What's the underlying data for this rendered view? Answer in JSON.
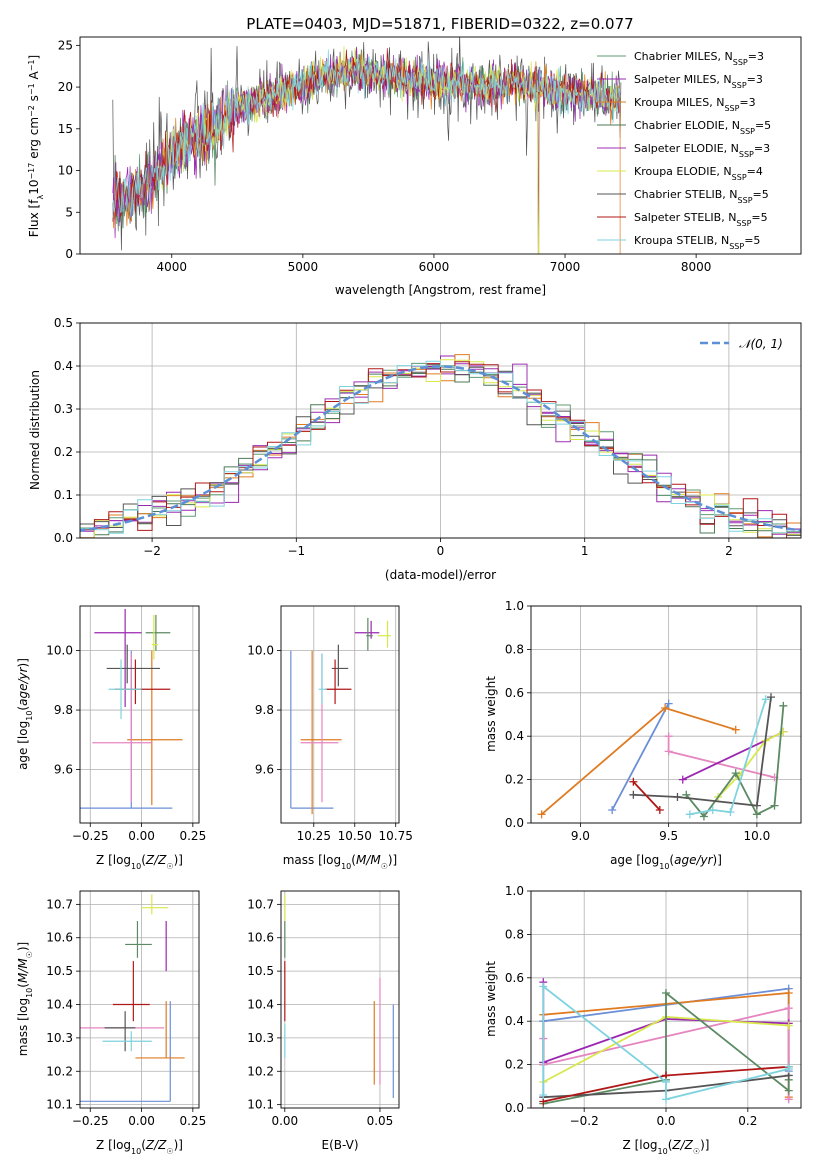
{
  "figure": {
    "title": "PLATE=0403, MJD=51871, FIBERID=0322, z=0.077"
  },
  "colors": {
    "series": [
      "#5f9b73",
      "#9b27b0",
      "#e07b22",
      "#4c7a56",
      "#9e32b3",
      "#d8e84c",
      "#555555",
      "#b01818",
      "#7fd3df"
    ],
    "mass_lines": [
      "#6b8fd6",
      "#e07b22",
      "#e685c0",
      "#9b27b0",
      "#d8e84c",
      "#5b8a63",
      "#555555",
      "#b01818",
      "#7fd3df"
    ],
    "normal_dash": "#5b8fd6"
  },
  "legend": {
    "spectrum": [
      {
        "label": "Chabrier MILES, N",
        "sub": "SSP",
        "tail": "=3"
      },
      {
        "label": "Salpeter MILES, N",
        "sub": "SSP",
        "tail": "=3"
      },
      {
        "label": "Kroupa MILES, N",
        "sub": "SSP",
        "tail": "=3"
      },
      {
        "label": "Chabrier ELODIE, N",
        "sub": "SSP",
        "tail": "=5"
      },
      {
        "label": "Salpeter ELODIE, N",
        "sub": "SSP",
        "tail": "=3"
      },
      {
        "label": "Kroupa ELODIE, N",
        "sub": "SSP",
        "tail": "=4"
      },
      {
        "label": "Chabrier STELIB, N",
        "sub": "SSP",
        "tail": "=5"
      },
      {
        "label": "Salpeter STELIB, N",
        "sub": "SSP",
        "tail": "=5"
      },
      {
        "label": "Kroupa STELIB, N",
        "sub": "SSP",
        "tail": "=5"
      }
    ],
    "residual": "𝒩(0, 1)"
  },
  "chart_data": [
    {
      "id": "spectrum",
      "type": "line",
      "xlabel": "wavelength [Angstrom, rest frame]",
      "ylabel": "Flux [f",
      "ylabel_parts": [
        "Flux [f",
        "λ",
        "10",
        "−17",
        " erg cm",
        "−2",
        " s",
        "−1",
        " A",
        "−1",
        "]"
      ],
      "xlim": [
        3300,
        8800
      ],
      "ylim": [
        0,
        26
      ],
      "xticks": [
        4000,
        5000,
        6000,
        7000,
        8000
      ],
      "yticks": [
        0,
        5,
        10,
        15,
        20,
        25
      ],
      "grid": false,
      "legend_position": "top-right",
      "continuum": [
        [
          3550,
          6.5
        ],
        [
          3700,
          7.0
        ],
        [
          3850,
          8.5
        ],
        [
          3950,
          11.0
        ],
        [
          4100,
          13.5
        ],
        [
          4300,
          14.5
        ],
        [
          4450,
          17.0
        ],
        [
          4600,
          18.0
        ],
        [
          4800,
          19.0
        ],
        [
          5000,
          20.0
        ],
        [
          5200,
          21.5
        ],
        [
          5400,
          22.0
        ],
        [
          5600,
          21.5
        ],
        [
          5800,
          21.0
        ],
        [
          6000,
          20.5
        ],
        [
          6200,
          20.5
        ],
        [
          6400,
          20.0
        ],
        [
          6600,
          20.5
        ],
        [
          6800,
          20.0
        ],
        [
          7000,
          19.5
        ],
        [
          7200,
          19.0
        ],
        [
          7400,
          18.5
        ],
        [
          7800,
          19.0
        ],
        [
          8200,
          19.5
        ],
        [
          8600,
          19.5
        ]
      ]
    },
    {
      "id": "residuals",
      "type": "line",
      "xlabel": "(data-model)/error",
      "ylabel": "Normed distribution",
      "xlim": [
        -2.5,
        2.5
      ],
      "ylim": [
        0,
        0.5
      ],
      "xticks": [
        -2,
        -1,
        0,
        1,
        2
      ],
      "xticklabels": [
        "−2",
        "−1",
        "0",
        "1",
        "2"
      ],
      "yticks": [
        0.0,
        0.1,
        0.2,
        0.3,
        0.4,
        0.5
      ],
      "yticklabels": [
        "0.0",
        "0.1",
        "0.2",
        "0.3",
        "0.4",
        "0.5"
      ],
      "grid": true,
      "legend_position": "top-right",
      "series": [
        {
          "name": "𝒩(0, 1)",
          "mu": 0,
          "sigma": 1
        }
      ]
    },
    {
      "id": "age_vs_Z",
      "type": "scatter",
      "xlabel": "Z [log10(Z/Z☉)]",
      "xlabel_parts": [
        "Z [log",
        "10",
        "(Z/Z",
        "☉",
        ")]"
      ],
      "ylabel_parts": [
        "age  [log",
        "10",
        "(age/yr)]"
      ],
      "xlim": [
        -0.3,
        0.28
      ],
      "ylim": [
        9.42,
        10.15
      ],
      "xticks": [
        -0.25,
        0.0,
        0.25
      ],
      "xticklabels": [
        "−0.25",
        "0.00",
        "0.25"
      ],
      "yticks": [
        9.6,
        9.8,
        10.0
      ],
      "yticklabels": [
        "9.6",
        "9.8",
        "10.0"
      ],
      "grid": true,
      "points": [
        {
          "z": -0.05,
          "zerr": [
            0.26,
            0.2
          ],
          "age": 9.47,
          "ageerr": [
            0,
            0.53
          ],
          "ci": 0
        },
        {
          "z": 0.05,
          "zerr": [
            0.12,
            0.15
          ],
          "age": 9.7,
          "ageerr": [
            0.22,
            0.3
          ],
          "ci": 1
        },
        {
          "z": -0.05,
          "zerr": [
            0.19,
            0.1
          ],
          "age": 9.69,
          "ageerr": [
            0.2,
            0.3
          ],
          "ci": 2
        },
        {
          "z": -0.08,
          "zerr": [
            0.15,
            0.08
          ],
          "age": 10.06,
          "ageerr": [
            0.25,
            0.08
          ],
          "ci": 3
        },
        {
          "z": -0.07,
          "zerr": [
            0.1,
            0.16
          ],
          "age": 9.94,
          "ageerr": [
            0.05,
            0.08
          ],
          "ci": 6
        },
        {
          "z": -0.03,
          "zerr": [
            0.1,
            0.17
          ],
          "age": 9.87,
          "ageerr": [
            0.05,
            0.1
          ],
          "ci": 7
        },
        {
          "z": -0.1,
          "zerr": [
            0.06,
            0.1
          ],
          "age": 9.87,
          "ageerr": [
            0.1,
            0.1
          ],
          "ci": 8
        },
        {
          "z": 0.07,
          "zerr": [
            0.05,
            0.07
          ],
          "age": 10.06,
          "ageerr": [
            0.06,
            0.06
          ],
          "ci": 5
        },
        {
          "z": 0.06,
          "zerr": [
            0.01,
            0.02
          ],
          "age": 10.02,
          "ageerr": [
            0.05,
            0.1
          ],
          "ci": 4
        }
      ]
    },
    {
      "id": "age_vs_mass",
      "type": "scatter",
      "xlabel_parts": [
        "mass [log",
        "10",
        "(M/M",
        "☉",
        ")]"
      ],
      "xlim": [
        10.05,
        10.77
      ],
      "ylim": [
        9.42,
        10.15
      ],
      "xticks": [
        10.0,
        10.25,
        10.5,
        10.75
      ],
      "xticklabels": [
        "10.00",
        "10.25",
        "10.50",
        "10.75"
      ],
      "yticks": [
        9.6,
        9.8,
        10.0
      ],
      "yticklabels": [
        "9.6",
        "9.8",
        "10.0"
      ],
      "grid": true,
      "points": [
        {
          "m": 10.11,
          "merr": [
            0,
            0.26
          ],
          "age": 9.47,
          "ageerr": [
            0,
            0.53
          ],
          "ci": 0
        },
        {
          "m": 10.24,
          "merr": [
            0.07,
            0.18
          ],
          "age": 9.7,
          "ageerr": [
            0.25,
            0.3
          ],
          "ci": 1
        },
        {
          "m": 10.3,
          "merr": [
            0.13,
            0.1
          ],
          "age": 9.69,
          "ageerr": [
            0.2,
            0.3
          ],
          "ci": 2
        },
        {
          "m": 10.4,
          "merr": [
            0.04,
            0.06
          ],
          "age": 9.94,
          "ageerr": [
            0.06,
            0.08
          ],
          "ci": 6
        },
        {
          "m": 10.38,
          "merr": [
            0.06,
            0.1
          ],
          "age": 9.87,
          "ageerr": [
            0.05,
            0.1
          ],
          "ci": 7
        },
        {
          "m": 10.3,
          "merr": [
            0.02,
            0.03
          ],
          "age": 9.87,
          "ageerr": [
            0.05,
            0.12
          ],
          "ci": 8
        },
        {
          "m": 10.6,
          "merr": [
            0.1,
            0.05
          ],
          "age": 10.06,
          "ageerr": [
            0.02,
            0.04
          ],
          "ci": 3
        },
        {
          "m": 10.58,
          "merr": [
            0.01,
            0.03
          ],
          "age": 10.05,
          "ageerr": [
            0.05,
            0.06
          ],
          "ci": 5
        },
        {
          "m": 10.7,
          "merr": [
            0.06,
            0.02
          ],
          "age": 10.05,
          "ageerr": [
            0.04,
            0.05
          ],
          "ci": 4
        }
      ]
    },
    {
      "id": "massweight_vs_age",
      "type": "line",
      "xlabel_parts": [
        "age  [log",
        "10",
        "(age/yr)]"
      ],
      "ylabel": "mass weight",
      "xlim": [
        8.72,
        10.25
      ],
      "ylim": [
        0,
        1
      ],
      "xticks": [
        9.0,
        9.5,
        10.0
      ],
      "xticklabels": [
        "9.0",
        "9.5",
        "10.0"
      ],
      "yticks": [
        0.0,
        0.2,
        0.4,
        0.6,
        0.8,
        1.0
      ],
      "yticklabels": [
        "0.0",
        "0.2",
        "0.4",
        "0.6",
        "0.8",
        "1.0"
      ],
      "grid": true,
      "series": [
        {
          "ci": 0,
          "x": [
            9.18,
            9.5
          ],
          "y": [
            0.06,
            0.55
          ]
        },
        {
          "ci": 1,
          "x": [
            8.78,
            9.48,
            9.88
          ],
          "y": [
            0.04,
            0.53,
            0.43
          ]
        },
        {
          "ci": 2,
          "x": [
            9.5,
            9.5,
            10.1
          ],
          "y": [
            0.4,
            0.33,
            0.21
          ]
        },
        {
          "ci": 3,
          "x": [
            9.58,
            10.15
          ],
          "y": [
            0.2,
            0.42
          ]
        },
        {
          "ci": 4,
          "x": [
            9.78,
            9.9,
            10.05,
            10.15
          ],
          "y": [
            0.12,
            0.22,
            0.38,
            0.42
          ]
        },
        {
          "ci": 5,
          "x": [
            9.6,
            9.7,
            9.88,
            10.0,
            10.1,
            10.15
          ],
          "y": [
            0.13,
            0.03,
            0.23,
            0.04,
            0.08,
            0.54
          ]
        },
        {
          "ci": 6,
          "x": [
            9.3,
            9.55,
            10.0,
            10.08
          ],
          "y": [
            0.13,
            0.12,
            0.08,
            0.58
          ]
        },
        {
          "ci": 7,
          "x": [
            9.3,
            9.45
          ],
          "y": [
            0.19,
            0.06
          ]
        },
        {
          "ci": 8,
          "x": [
            9.62,
            9.75,
            9.85,
            10.05
          ],
          "y": [
            0.04,
            0.06,
            0.05,
            0.57
          ]
        }
      ]
    },
    {
      "id": "mass_vs_Z",
      "type": "scatter",
      "xlabel_parts": [
        "Z [log",
        "10",
        "(Z/Z",
        "☉",
        ")]"
      ],
      "ylabel_parts": [
        "mass [log",
        "10",
        "(M/M",
        "☉",
        ")]"
      ],
      "xlim": [
        -0.3,
        0.28
      ],
      "ylim": [
        10.09,
        10.74
      ],
      "xticks": [
        -0.25,
        0.0,
        0.25
      ],
      "xticklabels": [
        "−0.25",
        "0.00",
        "0.25"
      ],
      "yticks": [
        10.1,
        10.2,
        10.3,
        10.4,
        10.5,
        10.6,
        10.7
      ],
      "yticklabels": [
        "10.1",
        "10.2",
        "10.3",
        "10.4",
        "10.5",
        "10.6",
        "10.7"
      ],
      "grid": true,
      "points": [
        {
          "z": 0.14,
          "zerr": [
            0.44,
            0.0
          ],
          "m": 10.11,
          "merr": [
            0.0,
            0.3
          ],
          "ci": 0
        },
        {
          "z": 0.12,
          "zerr": [
            0.15,
            0.09
          ],
          "m": 10.24,
          "merr": [
            0.0,
            0.17
          ],
          "ci": 1
        },
        {
          "z": -0.05,
          "zerr": [
            0.25,
            0.16
          ],
          "m": 10.33,
          "merr": [
            0.0,
            0.0
          ],
          "ci": 2
        },
        {
          "z": 0.05,
          "zerr": [
            0.05,
            0.08
          ],
          "m": 10.69,
          "merr": [
            0.02,
            0.04
          ],
          "ci": 4
        },
        {
          "z": -0.02,
          "zerr": [
            0.06,
            0.07
          ],
          "m": 10.58,
          "merr": [
            0.04,
            0.07
          ],
          "ci": 5
        },
        {
          "z": -0.04,
          "zerr": [
            0.1,
            0.08
          ],
          "m": 10.4,
          "merr": [
            0.05,
            0.13
          ],
          "ci": 7
        },
        {
          "z": -0.08,
          "zerr": [
            0.1,
            0.05
          ],
          "m": 10.33,
          "merr": [
            0.07,
            0.05
          ],
          "ci": 6
        },
        {
          "z": -0.05,
          "zerr": [
            0.14,
            0.1
          ],
          "m": 10.29,
          "merr": [
            0.03,
            0.03
          ],
          "ci": 8
        },
        {
          "z": 0.12,
          "zerr": [
            0.0,
            0.0
          ],
          "m": 10.55,
          "merr": [
            0.05,
            0.1
          ],
          "ci": 3
        }
      ]
    },
    {
      "id": "mass_vs_ebv",
      "type": "scatter",
      "xlabel": "E(B-V)",
      "xlim": [
        -0.002,
        0.06
      ],
      "ylim": [
        10.09,
        10.74
      ],
      "xticks": [
        0.0,
        0.05
      ],
      "xticklabels": [
        "0.00",
        "0.05"
      ],
      "yticks": [
        10.1,
        10.2,
        10.3,
        10.4,
        10.5,
        10.6,
        10.7
      ],
      "yticklabels": [
        "10.1",
        "10.2",
        "10.3",
        "10.4",
        "10.5",
        "10.6",
        "10.7"
      ],
      "grid": true,
      "points": [
        {
          "e": 0.0,
          "m": 10.69,
          "merr": [
            0.04,
            0.04
          ],
          "ci": 4
        },
        {
          "e": 0.0,
          "m": 10.58,
          "merr": [
            0.04,
            0.07
          ],
          "ci": 5
        },
        {
          "e": 0.0,
          "m": 10.4,
          "merr": [
            0.05,
            0.13
          ],
          "ci": 7
        },
        {
          "e": 0.0,
          "m": 10.29,
          "merr": [
            0.05,
            0.05
          ],
          "ci": 8
        },
        {
          "e": 0.047,
          "m": 10.29,
          "merr": [
            0.13,
            0.12
          ],
          "ci": 1
        },
        {
          "e": 0.05,
          "m": 10.31,
          "merr": [
            0.15,
            0.17
          ],
          "ci": 2
        },
        {
          "e": 0.057,
          "m": 10.26,
          "merr": [
            0.14,
            0.14
          ],
          "ci": 0
        }
      ]
    },
    {
      "id": "massweight_vs_Z",
      "type": "line",
      "xlabel_parts": [
        "Z [log",
        "10",
        "(Z/Z",
        "☉",
        ")]"
      ],
      "ylabel": "mass weight",
      "xlim": [
        -0.33,
        0.33
      ],
      "ylim": [
        0,
        1
      ],
      "xticks": [
        -0.2,
        0.0,
        0.2
      ],
      "xticklabels": [
        "−0.2",
        "0.0",
        "0.2"
      ],
      "yticks": [
        0.0,
        0.2,
        0.4,
        0.6,
        0.8,
        1.0
      ],
      "yticklabels": [
        "0.0",
        "0.2",
        "0.4",
        "0.6",
        "0.8",
        "1.0"
      ],
      "grid": true,
      "series": [
        {
          "ci": 0,
          "x": [
            -0.3,
            -0.3,
            0.3,
            0.3
          ],
          "y": [
            0.05,
            0.4,
            0.55,
            0.17
          ]
        },
        {
          "ci": 1,
          "x": [
            -0.3,
            -0.3,
            0.3,
            0.3
          ],
          "y": [
            0.2,
            0.43,
            0.53,
            0.05
          ]
        },
        {
          "ci": 2,
          "x": [
            -0.3,
            -0.3,
            0.3,
            0.3
          ],
          "y": [
            0.32,
            0.2,
            0.46,
            0.04
          ]
        },
        {
          "ci": 3,
          "x": [
            -0.3,
            -0.3,
            0.0,
            0.3
          ],
          "y": [
            0.58,
            0.21,
            0.41,
            0.39
          ]
        },
        {
          "ci": 4,
          "x": [
            -0.3,
            0.0,
            0.3
          ],
          "y": [
            0.12,
            0.42,
            0.38
          ]
        },
        {
          "ci": 5,
          "x": [
            -0.3,
            0.0,
            0.0,
            0.3,
            0.3
          ],
          "y": [
            0.02,
            0.13,
            0.53,
            0.08,
            0.13
          ]
        },
        {
          "ci": 6,
          "x": [
            -0.3,
            0.0,
            0.3
          ],
          "y": [
            0.05,
            0.08,
            0.15
          ]
        },
        {
          "ci": 7,
          "x": [
            -0.3,
            0.0,
            0.3
          ],
          "y": [
            0.03,
            0.15,
            0.19
          ]
        },
        {
          "ci": 8,
          "x": [
            -0.3,
            -0.3,
            0.0,
            0.0,
            0.3,
            0.3
          ],
          "y": [
            0.06,
            0.56,
            0.12,
            0.04,
            0.18,
            0.19
          ]
        }
      ]
    }
  ]
}
